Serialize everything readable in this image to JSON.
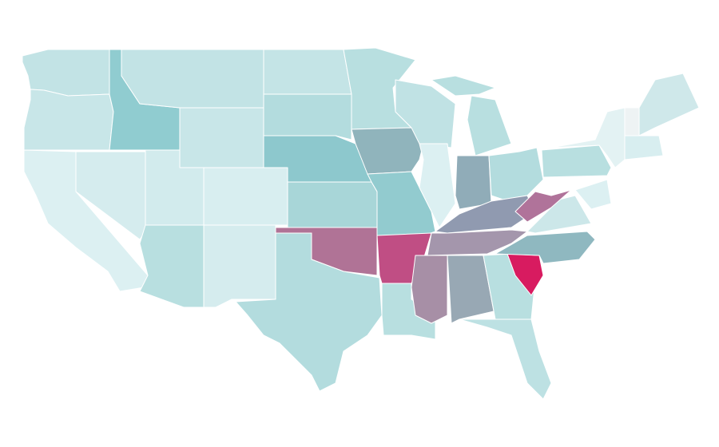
{
  "map": {
    "regions": [
      {
        "color": "#c2e3e5"
      },
      {
        "color": "#c8e6e8"
      },
      {
        "color": "#dcf0f2"
      },
      {
        "color": "#d5ecee"
      },
      {
        "color": "#90ccd0"
      },
      {
        "color": "#c2e3e5"
      },
      {
        "color": "#c8e6e8"
      },
      {
        "color": "#d2ebed"
      },
      {
        "color": "#d8eef0"
      },
      {
        "color": "#b8dfe0"
      },
      {
        "color": "#d5ecee"
      },
      {
        "color": "#c4e4e6"
      },
      {
        "color": "#b3dcde"
      },
      {
        "color": "#8dc8cd"
      },
      {
        "color": "#a8d6d8"
      },
      {
        "color": "#b07396"
      },
      {
        "color": "#b3dcde"
      },
      {
        "color": "#b8dfe0"
      },
      {
        "color": "#90b4bc"
      },
      {
        "color": "#92cbcf"
      },
      {
        "color": "#c04e84"
      },
      {
        "color": "#b8dfe0"
      },
      {
        "color": "#c0e2e4"
      },
      {
        "color": "#dcf0f2"
      },
      {
        "color": "#b8dfe0"
      },
      {
        "color": "#b8dfe0"
      },
      {
        "color": "#90acb8"
      },
      {
        "color": "#b3dcde"
      },
      {
        "color": "#909ab0"
      },
      {
        "color": "#a496ac"
      },
      {
        "color": "#a78fa6"
      },
      {
        "color": "#98a8b4"
      },
      {
        "color": "#b8dfe0"
      },
      {
        "color": "#bde1e3"
      },
      {
        "color": "#d81b60"
      },
      {
        "color": "#8fb8c0"
      },
      {
        "color": "#cce7e9"
      },
      {
        "color": "#b0739a"
      },
      {
        "color": "#b8dfe0"
      },
      {
        "color": "#e3f2f3"
      },
      {
        "color": "#dcf0f2"
      },
      {
        "color": "#cfe8ea"
      },
      {
        "color": "#d8eef0"
      },
      {
        "color": "#eef3f4"
      }
    ]
  }
}
